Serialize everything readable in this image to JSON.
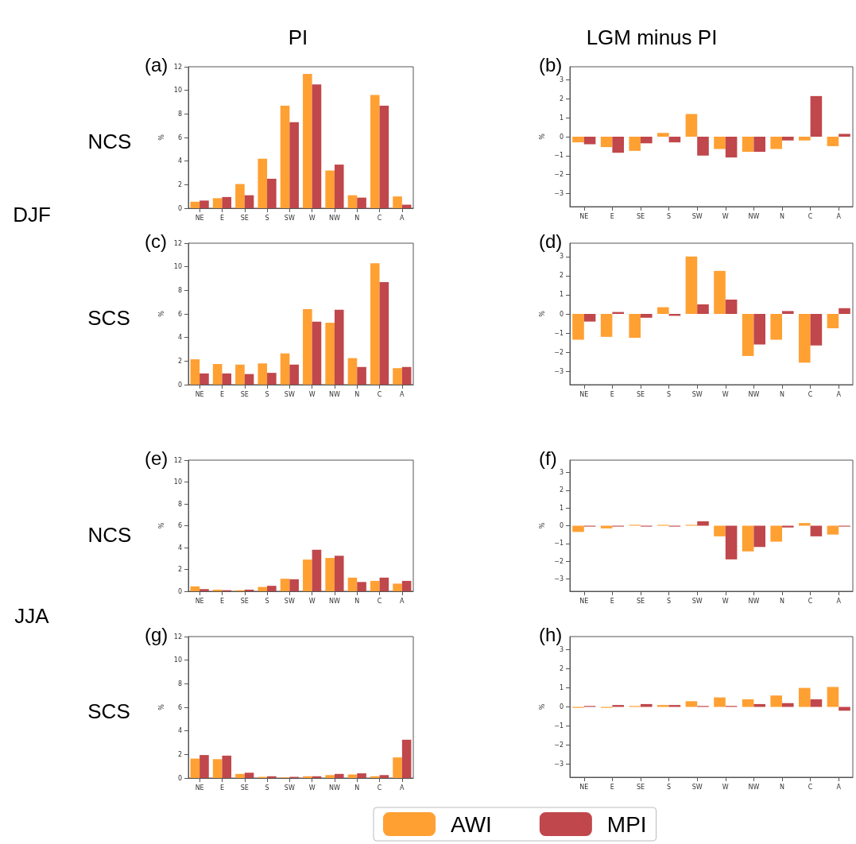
{
  "chart_data": [
    {
      "type": "bar",
      "title": "(a)",
      "ylabel": "%",
      "annotations": [
        "PI",
        "NCS",
        "DJF"
      ],
      "categories": [
        "NE",
        "E",
        "SE",
        "S",
        "SW",
        "W",
        "NW",
        "N",
        "C",
        "A"
      ],
      "ylim": [
        0,
        12
      ],
      "yticks": [
        0,
        2,
        4,
        6,
        8,
        10,
        12
      ],
      "grid": false,
      "legend": false,
      "series": [
        {
          "color": "#ffa033",
          "values": [
            0.55,
            0.85,
            2.05,
            4.2,
            8.7,
            11.4,
            3.2,
            1.1,
            9.6,
            1.0
          ]
        },
        {
          "color": "#c0474b",
          "values": [
            0.65,
            0.95,
            1.1,
            2.5,
            7.3,
            10.5,
            3.7,
            0.9,
            8.7,
            0.3
          ]
        }
      ]
    },
    {
      "type": "bar",
      "title": "(b)",
      "ylabel": "%",
      "annotations": [
        "LGM minus PI"
      ],
      "categories": [
        "NE",
        "E",
        "SE",
        "S",
        "SW",
        "W",
        "NW",
        "N",
        "C",
        "A"
      ],
      "ylim": [
        -3.7,
        3.7
      ],
      "yticks": [
        -3,
        -2,
        -1,
        0,
        1,
        2,
        3
      ],
      "grid": false,
      "legend": false,
      "series": [
        {
          "color": "#ffa033",
          "values": [
            -0.3,
            -0.55,
            -0.75,
            0.2,
            1.2,
            -0.65,
            -0.8,
            -0.65,
            -0.2,
            -0.5
          ]
        },
        {
          "color": "#c0474b",
          "values": [
            -0.4,
            -0.85,
            -0.35,
            -0.3,
            -1.0,
            -1.1,
            -0.8,
            -0.2,
            2.15,
            0.15
          ]
        }
      ]
    },
    {
      "type": "bar",
      "title": "(c)",
      "ylabel": "%",
      "annotations": [
        "SCS"
      ],
      "categories": [
        "NE",
        "E",
        "SE",
        "S",
        "SW",
        "W",
        "NW",
        "N",
        "C",
        "A"
      ],
      "ylim": [
        0,
        12
      ],
      "yticks": [
        0,
        2,
        4,
        6,
        8,
        10,
        12
      ],
      "grid": false,
      "legend": false,
      "series": [
        {
          "color": "#ffa033",
          "values": [
            2.15,
            1.75,
            1.7,
            1.8,
            2.65,
            6.4,
            5.25,
            2.25,
            10.3,
            1.4
          ]
        },
        {
          "color": "#c0474b",
          "values": [
            0.95,
            0.95,
            0.9,
            1.0,
            1.7,
            5.35,
            6.35,
            1.5,
            8.7,
            1.5
          ]
        }
      ]
    },
    {
      "type": "bar",
      "title": "(d)",
      "ylabel": "%",
      "categories": [
        "NE",
        "E",
        "SE",
        "S",
        "SW",
        "W",
        "NW",
        "N",
        "C",
        "A"
      ],
      "ylim": [
        -3.7,
        3.7
      ],
      "yticks": [
        -3,
        -2,
        -1,
        0,
        1,
        2,
        3
      ],
      "grid": false,
      "legend": false,
      "series": [
        {
          "color": "#ffa033",
          "values": [
            -1.35,
            -1.2,
            -1.25,
            0.35,
            3.0,
            2.25,
            -2.2,
            -1.35,
            -2.55,
            -0.75
          ]
        },
        {
          "color": "#c0474b",
          "values": [
            -0.4,
            0.1,
            -0.2,
            -0.1,
            0.5,
            0.75,
            -1.6,
            0.15,
            -1.65,
            0.3
          ]
        }
      ]
    },
    {
      "type": "bar",
      "title": "(e)",
      "ylabel": "%",
      "annotations": [
        "NCS"
      ],
      "categories": [
        "NE",
        "E",
        "SE",
        "S",
        "SW",
        "W",
        "NW",
        "N",
        "C",
        "A"
      ],
      "ylim": [
        0,
        12
      ],
      "yticks": [
        0,
        2,
        4,
        6,
        8,
        10,
        12
      ],
      "grid": false,
      "legend": false,
      "series": [
        {
          "color": "#ffa033",
          "values": [
            0.45,
            0.15,
            0.1,
            0.4,
            1.15,
            2.9,
            3.05,
            1.25,
            0.95,
            0.7
          ]
        },
        {
          "color": "#c0474b",
          "values": [
            0.2,
            0.1,
            0.15,
            0.5,
            1.1,
            3.8,
            3.25,
            0.85,
            1.25,
            0.95
          ]
        }
      ]
    },
    {
      "type": "bar",
      "title": "(f)",
      "ylabel": "%",
      "categories": [
        "NE",
        "E",
        "SE",
        "S",
        "SW",
        "W",
        "NW",
        "N",
        "C",
        "A"
      ],
      "ylim": [
        -3.7,
        3.7
      ],
      "yticks": [
        -3,
        -2,
        -1,
        0,
        1,
        2,
        3
      ],
      "grid": false,
      "legend": false,
      "series": [
        {
          "color": "#ffa033",
          "values": [
            -0.35,
            -0.15,
            0.05,
            0.05,
            0.05,
            -0.6,
            -1.45,
            -0.9,
            0.15,
            -0.5
          ]
        },
        {
          "color": "#c0474b",
          "values": [
            -0.05,
            -0.05,
            -0.05,
            -0.05,
            0.25,
            -1.9,
            -1.2,
            -0.1,
            -0.6,
            -0.05
          ]
        }
      ]
    },
    {
      "type": "bar",
      "title": "(g)",
      "ylabel": "%",
      "annotations": [
        "SCS",
        "JJA"
      ],
      "categories": [
        "NE",
        "E",
        "SE",
        "S",
        "SW",
        "W",
        "NW",
        "N",
        "C",
        "A"
      ],
      "ylim": [
        0,
        12
      ],
      "yticks": [
        0,
        2,
        4,
        6,
        8,
        10,
        12
      ],
      "grid": false,
      "legend": false,
      "series": [
        {
          "color": "#ffa033",
          "values": [
            1.65,
            1.6,
            0.35,
            0.1,
            0.05,
            0.15,
            0.25,
            0.3,
            0.15,
            1.75
          ]
        },
        {
          "color": "#c0474b",
          "values": [
            1.95,
            1.9,
            0.45,
            0.15,
            0.1,
            0.15,
            0.35,
            0.4,
            0.25,
            3.25
          ]
        }
      ]
    },
    {
      "type": "bar",
      "title": "(h)",
      "ylabel": "%",
      "categories": [
        "NE",
        "E",
        "SE",
        "S",
        "SW",
        "W",
        "NW",
        "N",
        "C",
        "A"
      ],
      "ylim": [
        -3.7,
        3.7
      ],
      "yticks": [
        -3,
        -2,
        -1,
        0,
        1,
        2,
        3
      ],
      "grid": false,
      "legend": "bottom",
      "series": [
        {
          "name": "AWI",
          "color": "#ffa033",
          "values": [
            -0.05,
            -0.05,
            0.05,
            0.1,
            0.3,
            0.5,
            0.4,
            0.6,
            1.0,
            1.05
          ]
        },
        {
          "name": "MPI",
          "color": "#c0474b",
          "values": [
            0.05,
            0.1,
            0.15,
            0.1,
            0.05,
            0.05,
            0.15,
            0.2,
            0.4,
            -0.2
          ]
        }
      ]
    }
  ]
}
